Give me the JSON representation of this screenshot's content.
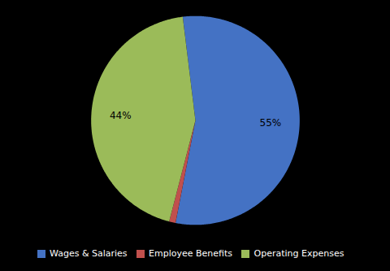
{
  "chart_data": {
    "type": "pie",
    "categories": [
      "Wages & Salaries",
      "Employee Benefits",
      "Operating Expenses"
    ],
    "values": [
      55,
      1,
      44
    ],
    "value_labels": [
      "55%",
      null,
      "44%"
    ],
    "colors": [
      "#4472C4",
      "#C0504D",
      "#9BBB59"
    ],
    "data_labels": true,
    "legend": "bottom"
  }
}
